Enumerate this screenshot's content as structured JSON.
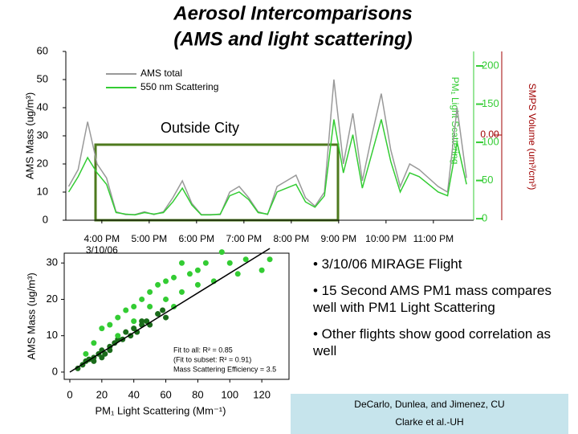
{
  "slide": {
    "title": [
      "Aerosol Intercomparisons",
      "(AMS and light scattering)"
    ],
    "bullets": [
      "• 3/10/06 MIRAGE Flight",
      "• 15 Second AMS PM1 mass compares well with PM1 Light Scattering",
      "• Other flights show good correlation as well"
    ],
    "credits": [
      "DeCarlo, Dunlea, and Jimenez, CU",
      "Clarke et al.-UH"
    ]
  },
  "chart_data": [
    {
      "type": "line",
      "xlabel_sub": "3/10/06",
      "ylabel": "AMS Mass (ug/m³)",
      "y2label": "PM₁ Light Scattering",
      "y3label": "SMPS Volume (um³/cm³)",
      "y3_tick_label": "0.00",
      "annotation": "Outside City",
      "x": [
        15.3,
        15.5,
        15.7,
        15.9,
        16.1,
        16.3,
        16.5,
        16.7,
        16.9,
        17.1,
        17.3,
        17.5,
        17.7,
        17.9,
        18.1,
        18.3,
        18.5,
        18.7,
        18.9,
        19.1,
        19.3,
        19.5,
        19.7,
        19.9,
        20.1,
        20.3,
        20.5,
        20.7,
        20.9,
        21.1,
        21.3,
        21.5,
        21.7,
        21.9,
        22.1,
        22.3,
        22.5,
        22.7,
        22.9,
        23.1,
        23.3,
        23.5,
        23.7
      ],
      "xlim": [
        15.24,
        23.85
      ],
      "xticks": [
        {
          "value": 16,
          "label": "4:00 PM"
        },
        {
          "value": 17,
          "label": "5:00 PM"
        },
        {
          "value": 18,
          "label": "6:00 PM"
        },
        {
          "value": 19,
          "label": "7:00 PM"
        },
        {
          "value": 20,
          "label": "8:00 PM"
        },
        {
          "value": 21,
          "label": "9:00 PM"
        },
        {
          "value": 22,
          "label": "10:00 PM"
        },
        {
          "value": 23,
          "label": "11:00 PM"
        }
      ],
      "ylim": [
        0,
        60
      ],
      "yticks": [
        0,
        10,
        20,
        30,
        40,
        50,
        60
      ],
      "y2lim": [
        -2,
        219
      ],
      "y2ticks": [
        0,
        50,
        100,
        150,
        200
      ],
      "series": [
        {
          "name": "AMS total",
          "color": "#999999",
          "axis": "y",
          "values": [
            12,
            18,
            35,
            20,
            15,
            3,
            2,
            2,
            3,
            2,
            3,
            8,
            14,
            6,
            2,
            2,
            2,
            10,
            12,
            8,
            3,
            2,
            12,
            14,
            16,
            8,
            5,
            10,
            50,
            20,
            38,
            14,
            30,
            45,
            25,
            12,
            20,
            18,
            15,
            12,
            10,
            40,
            15
          ]
        },
        {
          "name": "550 nm Scattering",
          "color": "#33cc33",
          "axis": "y2",
          "values": [
            35,
            55,
            80,
            60,
            45,
            8,
            6,
            5,
            8,
            6,
            8,
            22,
            40,
            18,
            5,
            5,
            6,
            30,
            35,
            25,
            8,
            6,
            35,
            40,
            45,
            22,
            15,
            30,
            130,
            60,
            110,
            40,
            85,
            130,
            75,
            35,
            60,
            55,
            45,
            35,
            30,
            100,
            45
          ]
        }
      ]
    },
    {
      "type": "scatter",
      "xlabel": "PM₁ Light Scattering (Mm⁻¹)",
      "ylabel": "AMS Mass (ug/m³)",
      "annotations": [
        "Fit to all: R² = 0.85",
        "(Fit to subset: R² = 0.91)",
        "Mass Scattering Efficiency = 3.5"
      ],
      "xlim": [
        -3.5,
        137
      ],
      "xticks": [
        0,
        20,
        40,
        60,
        80,
        100,
        120
      ],
      "ylim": [
        -2,
        32.7
      ],
      "yticks": [
        0,
        10,
        20,
        30
      ],
      "series": [
        {
          "color": "#1a6b1a",
          "x": [
            5,
            8,
            10,
            12,
            15,
            18,
            20,
            22,
            25,
            28,
            30,
            33,
            35,
            40,
            42,
            45,
            48,
            50,
            55,
            58,
            60,
            20,
            15,
            25,
            38,
            45
          ],
          "y": [
            1,
            2,
            3,
            3.5,
            4,
            5,
            6,
            5,
            7,
            8,
            9,
            9,
            11,
            12,
            11,
            13,
            14,
            13,
            16,
            17,
            15,
            4,
            3,
            6,
            10,
            14
          ]
        },
        {
          "color": "#33cc33",
          "x": [
            10,
            15,
            20,
            25,
            30,
            35,
            40,
            45,
            50,
            55,
            60,
            65,
            70,
            75,
            80,
            85,
            90,
            95,
            100,
            110,
            120,
            125,
            60,
            50,
            40,
            30,
            70,
            80,
            105,
            65
          ],
          "y": [
            5,
            8,
            12,
            13,
            15,
            17,
            18,
            20,
            22,
            24,
            25,
            26,
            30,
            27,
            28,
            30,
            25,
            33,
            30,
            31,
            28,
            31,
            20,
            18,
            14,
            10,
            22,
            24,
            27,
            18
          ]
        }
      ],
      "fit": {
        "color": "#000000",
        "x": [
          0,
          125
        ],
        "y": [
          0,
          34
        ]
      }
    }
  ]
}
